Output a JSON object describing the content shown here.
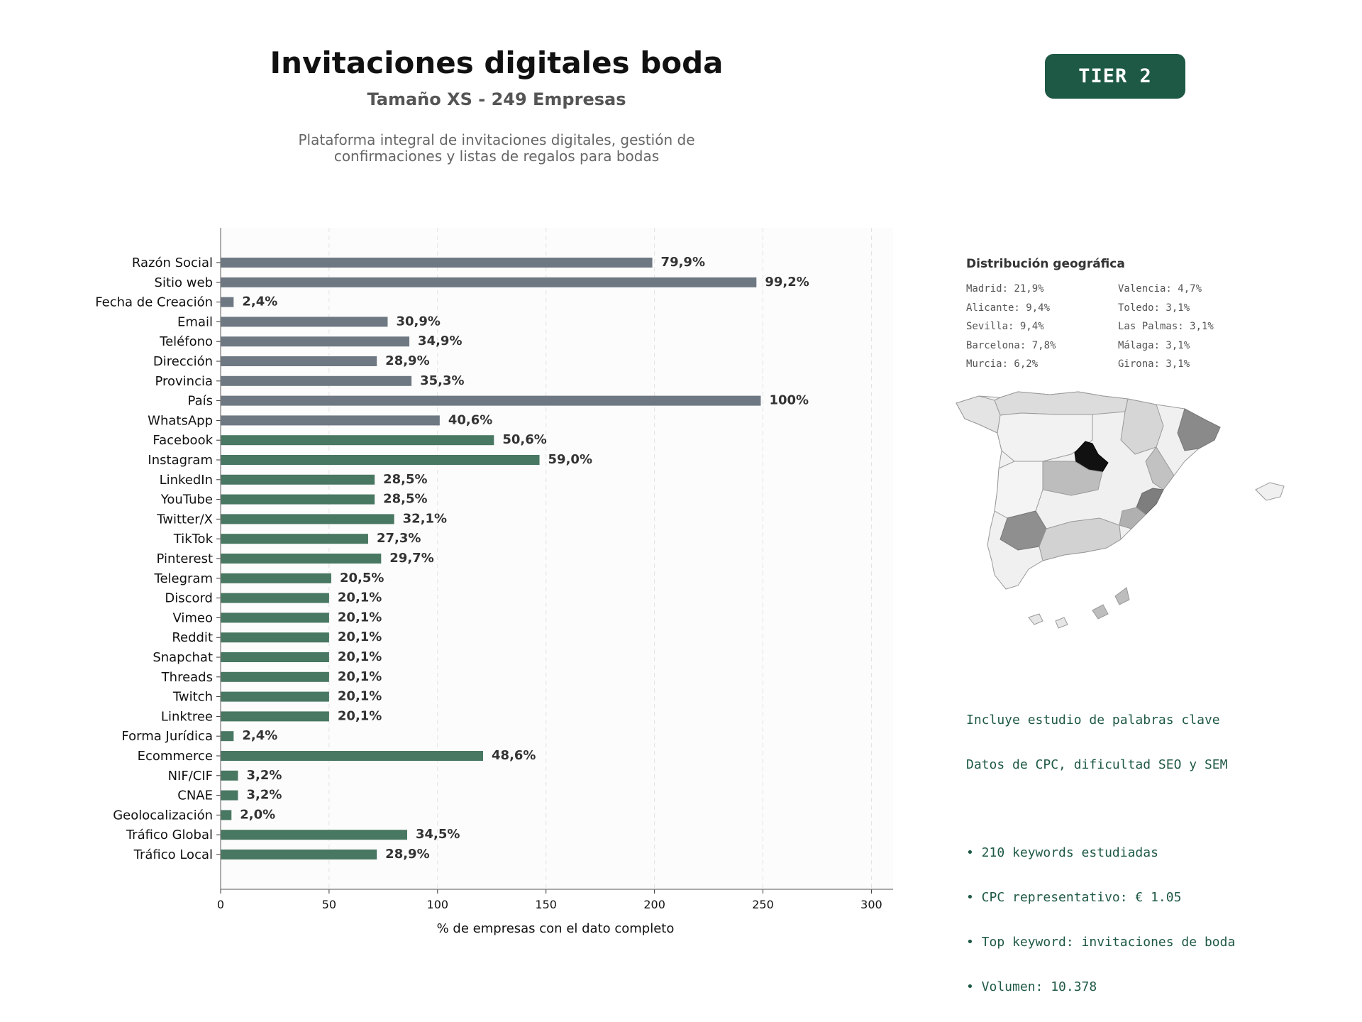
{
  "header": {
    "title": "Invitaciones digitales boda",
    "subtitle": "Tamaño XS - 249 Empresas",
    "description_line1": "Plataforma integral de invitaciones digitales, gestión de",
    "description_line2": "confirmaciones y listas de regalos para bodas",
    "tier_badge": "TIER 2"
  },
  "colors": {
    "gray_bar": "#6e7882",
    "green_bar": "#487762",
    "tier_bg": "#1e5945",
    "keyword_text": "#1e5945"
  },
  "chart_data": {
    "type": "bar",
    "orientation": "horizontal",
    "xlabel": "% de empresas con el dato completo",
    "ylabel": "",
    "xlim": [
      0,
      310
    ],
    "xticks": [
      0,
      50,
      100,
      150,
      200,
      250,
      300
    ],
    "grid": "vertical dashed",
    "categories": [
      "Razón Social",
      "Sitio web",
      "Fecha de Creación",
      "Email",
      "Teléfono",
      "Dirección",
      "Provincia",
      "País",
      "WhatsApp",
      "Facebook",
      "Instagram",
      "LinkedIn",
      "YouTube",
      "Twitter/X",
      "TikTok",
      "Pinterest",
      "Telegram",
      "Discord",
      "Vimeo",
      "Reddit",
      "Snapchat",
      "Threads",
      "Twitch",
      "Linktree",
      "Forma Jurídica",
      "Ecommerce",
      "NIF/CIF",
      "CNAE",
      "Geolocalización",
      "Tráfico Global",
      "Tráfico Local"
    ],
    "values": [
      199,
      247,
      6,
      77,
      87,
      72,
      88,
      249,
      101,
      126,
      147,
      71,
      71,
      80,
      68,
      74,
      51,
      50,
      50,
      50,
      50,
      50,
      50,
      50,
      6,
      121,
      8,
      8,
      5,
      86,
      72
    ],
    "labels": [
      "79,9%",
      "99,2%",
      "2,4%",
      "30,9%",
      "34,9%",
      "28,9%",
      "35,3%",
      "100%",
      "40,6%",
      "50,6%",
      "59,0%",
      "28,5%",
      "28,5%",
      "32,1%",
      "27,3%",
      "29,7%",
      "20,5%",
      "20,1%",
      "20,1%",
      "20,1%",
      "20,1%",
      "20,1%",
      "20,1%",
      "20,1%",
      "2,4%",
      "48,6%",
      "3,2%",
      "3,2%",
      "2,0%",
      "34,5%",
      "28,9%"
    ],
    "bar_color_group": [
      "gray",
      "gray",
      "gray",
      "gray",
      "gray",
      "gray",
      "gray",
      "gray",
      "gray",
      "green",
      "green",
      "green",
      "green",
      "green",
      "green",
      "green",
      "green",
      "green",
      "green",
      "green",
      "green",
      "green",
      "green",
      "green",
      "green",
      "green",
      "green",
      "green",
      "green",
      "green",
      "green"
    ]
  },
  "geo": {
    "title": "Distribución geográfica",
    "left_column": [
      "Madrid: 21,9%",
      "Alicante: 9,4%",
      "Sevilla: 9,4%",
      "Barcelona: 7,8%",
      "Murcia: 6,2%"
    ],
    "right_column": [
      "Valencia: 4,7%",
      "Toledo: 3,1%",
      "Las Palmas: 3,1%",
      "Málaga: 3,1%",
      "Girona: 3,1%"
    ]
  },
  "keywords": {
    "line1": "Incluye estudio de palabras clave",
    "line2": "Datos de CPC, dificultad SEO y SEM",
    "bullet1": "• 210 keywords estudiadas",
    "bullet2": "• CPC representativo: € 1.05",
    "bullet3": "• Top keyword: invitaciones de boda",
    "bullet4": "• Volumen: 10.378"
  }
}
